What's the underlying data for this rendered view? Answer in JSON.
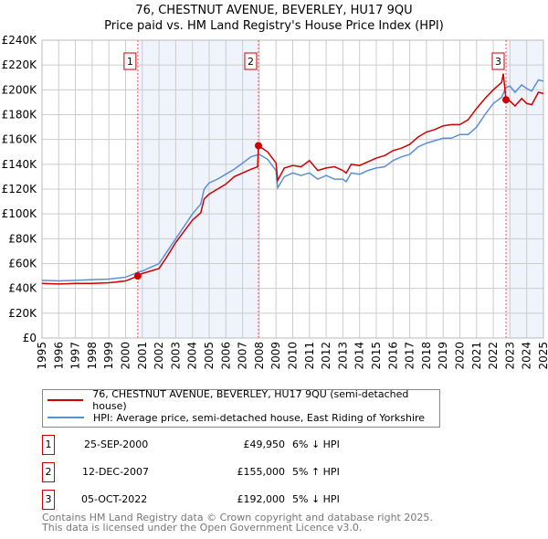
{
  "chart_data": {
    "type": "line",
    "title": "76, CHESTNUT AVENUE, BEVERLEY, HU17 9QU",
    "subtitle": "Price paid vs. HM Land Registry's House Price Index (HPI)",
    "xlim": [
      1995,
      2025
    ],
    "ylim": [
      0,
      240000
    ],
    "yticks": [
      0,
      20000,
      40000,
      60000,
      80000,
      100000,
      120000,
      140000,
      160000,
      180000,
      200000,
      220000,
      240000
    ],
    "ytick_labels": [
      "£0",
      "£20K",
      "£40K",
      "£60K",
      "£80K",
      "£100K",
      "£120K",
      "£140K",
      "£160K",
      "£180K",
      "£200K",
      "£220K",
      "£240K"
    ],
    "xticks": [
      "1995",
      "1996",
      "1997",
      "1998",
      "1999",
      "2000",
      "2001",
      "2002",
      "2003",
      "2004",
      "2005",
      "2006",
      "2007",
      "2008",
      "2009",
      "2010",
      "2011",
      "2012",
      "2013",
      "2014",
      "2015",
      "2016",
      "2017",
      "2018",
      "2019",
      "2020",
      "2021",
      "2022",
      "2023",
      "2024",
      "2025"
    ],
    "grid": true,
    "series": [
      {
        "name": "76, CHESTNUT AVENUE, BEVERLEY, HU17 9QU (semi-detached house)",
        "color": "#cc0000",
        "x": [
          1995,
          1996,
          1997,
          1998,
          1999,
          2000,
          2000.73,
          2001,
          2002,
          2002.5,
          2003,
          2003.5,
          2004,
          2004.5,
          2004.7,
          2005,
          2005.5,
          2006,
          2006.5,
          2007,
          2007.5,
          2007.9,
          2007.95,
          2008.5,
          2009,
          2009.1,
          2009.5,
          2010,
          2010.5,
          2011,
          2011.5,
          2012,
          2012.5,
          2013,
          2013.2,
          2013.5,
          2014,
          2014.5,
          2015,
          2015.5,
          2016,
          2016.5,
          2017,
          2017.5,
          2018,
          2018.5,
          2019,
          2019.5,
          2020,
          2020.5,
          2021,
          2021.5,
          2022,
          2022.5,
          2022.6,
          2022.76,
          2023,
          2023.3,
          2023.7,
          2024,
          2024.3,
          2024.7,
          2025
        ],
        "y": [
          44000,
          43500,
          44000,
          44000,
          44500,
          46000,
          49950,
          52000,
          56000,
          66000,
          77000,
          86000,
          95000,
          101000,
          112000,
          116000,
          120000,
          124000,
          130000,
          133000,
          136000,
          138000,
          155000,
          150000,
          141000,
          127000,
          137000,
          139000,
          138000,
          143000,
          135000,
          137000,
          138000,
          135000,
          133000,
          140000,
          139000,
          142000,
          145000,
          147000,
          151000,
          153000,
          156000,
          162000,
          166000,
          168000,
          171000,
          172000,
          172000,
          176000,
          185000,
          193000,
          200000,
          206000,
          213000,
          192000,
          191000,
          187000,
          193000,
          189000,
          188000,
          198000,
          197000
        ]
      },
      {
        "name": "HPI: Average price, semi-detached house, East Riding of Yorkshire",
        "color": "#5b8fd4",
        "x": [
          1995,
          1996,
          1997,
          1998,
          1999,
          2000,
          2000.75,
          2001,
          2002,
          2002.5,
          2003,
          2003.5,
          2004,
          2004.5,
          2004.7,
          2005,
          2005.5,
          2006,
          2006.5,
          2007,
          2007.5,
          2008,
          2008.5,
          2009,
          2009.1,
          2009.5,
          2010,
          2010.5,
          2011,
          2011.5,
          2012,
          2012.5,
          2013,
          2013.2,
          2013.5,
          2014,
          2014.5,
          2015,
          2015.5,
          2016,
          2016.5,
          2017,
          2017.5,
          2018,
          2018.5,
          2019,
          2019.5,
          2020,
          2020.5,
          2021,
          2021.5,
          2022,
          2022.5,
          2022.76,
          2023,
          2023.3,
          2023.7,
          2024,
          2024.3,
          2024.7,
          2025
        ],
        "y": [
          46500,
          46000,
          46500,
          47000,
          47500,
          49000,
          53000,
          54000,
          60000,
          70000,
          80000,
          90000,
          100000,
          108000,
          120000,
          125000,
          128000,
          132000,
          136000,
          141000,
          146000,
          148000,
          144000,
          135000,
          121000,
          130000,
          133000,
          131000,
          133000,
          128000,
          131000,
          128000,
          128000,
          126000,
          133000,
          132000,
          135000,
          137000,
          138000,
          143000,
          146000,
          148000,
          154000,
          157000,
          159000,
          161000,
          161000,
          164000,
          164000,
          170000,
          180000,
          189000,
          194000,
          202000,
          203000,
          198000,
          204000,
          201000,
          199000,
          208000,
          207000
        ]
      }
    ],
    "sales": [
      {
        "label": "1",
        "x": 2000.73,
        "date": "25-SEP-2000",
        "price_value": 49950,
        "price": "£49,950",
        "hpi": "6% ↓ HPI"
      },
      {
        "label": "2",
        "x": 2007.95,
        "date": "12-DEC-2007",
        "price_value": 155000,
        "price": "£155,000",
        "hpi": "5% ↑ HPI"
      },
      {
        "label": "3",
        "x": 2022.76,
        "date": "05-OCT-2022",
        "price_value": 192000,
        "price": "£192,000",
        "hpi": "5% ↓ HPI"
      }
    ],
    "shaded_ranges": [
      [
        2000.73,
        2007.95
      ],
      [
        2022.76,
        2025
      ]
    ],
    "legend_placement": "below"
  },
  "footer": [
    "Contains HM Land Registry data © Crown copyright and database right 2025.",
    "This data is licensed under the Open Government Licence v3.0."
  ]
}
